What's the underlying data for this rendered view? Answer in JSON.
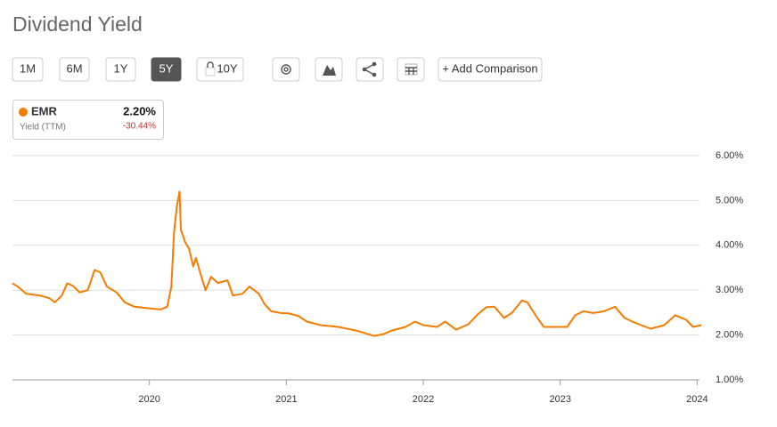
{
  "toolbar": {
    "buttons": [
      "1M",
      "6M",
      "1Y",
      "5Y",
      "10Y"
    ],
    "add_comparison": "+ Add Comparison"
  },
  "legend_box": {
    "value": "2.20%",
    "metric": "Yield (TTM)",
    "change": "-30.44%"
  },
  "chart_data": {
    "type": "line",
    "title": "Dividend Yield",
    "xlim": [
      2019.0,
      2024.03
    ],
    "xticks": [
      2020,
      2021,
      2022,
      2023,
      2024
    ],
    "ylim": [
      1,
      6
    ],
    "yticks": [
      {
        "value": 1,
        "label": "1.00%"
      },
      {
        "value": 2,
        "label": "2.00%"
      },
      {
        "value": 3,
        "label": "3.00%"
      },
      {
        "value": 4,
        "label": "4.00%"
      },
      {
        "value": 5,
        "label": "5.00%"
      },
      {
        "value": 6,
        "label": "6.00%"
      }
    ],
    "grid": true,
    "x": [
      2019.0,
      2019.04,
      2019.1,
      2019.2,
      2019.27,
      2019.31,
      2019.36,
      2019.4,
      2019.44,
      2019.49,
      2019.55,
      2019.6,
      2019.64,
      2019.69,
      2019.76,
      2019.82,
      2019.89,
      2019.98,
      2020.08,
      2020.13,
      2020.16,
      2020.18,
      2020.2,
      2020.22,
      2020.23,
      2020.26,
      2020.29,
      2020.32,
      2020.34,
      2020.37,
      2020.41,
      2020.45,
      2020.5,
      2020.57,
      2020.61,
      2020.68,
      2020.73,
      2020.8,
      2020.84,
      2020.89,
      2020.96,
      2021.02,
      2021.09,
      2021.15,
      2021.25,
      2021.38,
      2021.51,
      2021.64,
      2021.71,
      2021.77,
      2021.87,
      2021.94,
      2022.0,
      2022.1,
      2022.16,
      2022.24,
      2022.33,
      2022.39,
      2022.46,
      2022.52,
      2022.59,
      2022.65,
      2022.72,
      2022.76,
      2022.82,
      2022.88,
      2022.98,
      2023.05,
      2023.11,
      2023.17,
      2023.24,
      2023.32,
      2023.4,
      2023.47,
      2023.54,
      2023.66,
      2023.76,
      2023.84,
      2023.92,
      2023.97,
      2024.03
    ],
    "series": [
      {
        "name": "EMR",
        "color": "#f57c00",
        "values": [
          3.15,
          3.08,
          2.92,
          2.88,
          2.82,
          2.73,
          2.88,
          3.15,
          3.1,
          2.95,
          3.0,
          3.45,
          3.4,
          3.08,
          2.95,
          2.73,
          2.63,
          2.6,
          2.57,
          2.63,
          3.08,
          4.28,
          4.86,
          5.2,
          4.35,
          4.08,
          3.92,
          3.53,
          3.72,
          3.4,
          3.0,
          3.3,
          3.16,
          3.22,
          2.88,
          2.92,
          3.08,
          2.92,
          2.69,
          2.53,
          2.49,
          2.48,
          2.42,
          2.3,
          2.22,
          2.18,
          2.1,
          1.98,
          2.02,
          2.1,
          2.18,
          2.3,
          2.22,
          2.18,
          2.3,
          2.12,
          2.24,
          2.44,
          2.62,
          2.63,
          2.38,
          2.5,
          2.77,
          2.73,
          2.44,
          2.18,
          2.18,
          2.18,
          2.44,
          2.53,
          2.49,
          2.53,
          2.63,
          2.38,
          2.28,
          2.14,
          2.22,
          2.44,
          2.34,
          2.18,
          2.22
        ]
      }
    ]
  }
}
